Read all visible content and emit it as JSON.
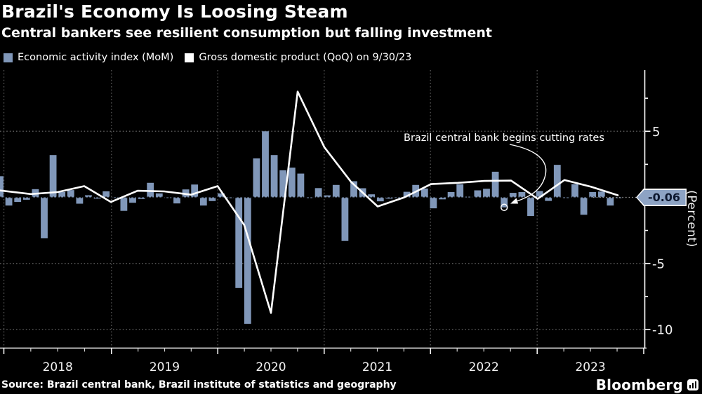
{
  "header": {
    "title": "Brazil's Economy Is Loosing Steam",
    "subtitle": "Central bankers see resilient consumption but falling investment"
  },
  "legend": [
    {
      "label": "Economic activity index (MoM)",
      "color": "#8097b9"
    },
    {
      "label": "Gross domestic product (QoQ) on 9/30/23",
      "color": "#ffffff"
    }
  ],
  "annotation": {
    "text": "Brazil central bank begins cutting rates"
  },
  "y_axis": {
    "unit_label": "(Percent)",
    "last_value_tag": "-0.06",
    "tick_labels": [
      {
        "label": "5",
        "value": 5
      },
      {
        "label": "-5",
        "value": -5
      },
      {
        "label": "-10",
        "value": -10
      }
    ]
  },
  "footer": {
    "source": "Source: Brazil central bank, Brazil institute of statistics and geography",
    "brand": "Bloomberg"
  },
  "chart_data": {
    "type": "combo",
    "title": "Brazil's Economy Is Loosing Steam",
    "bar_series": {
      "name": "Economic activity index (MoM)",
      "color": "#8097b9",
      "frequency": "monthly",
      "start_month": "2017-12",
      "values": [
        1.6,
        -0.62,
        -0.35,
        -0.18,
        0.62,
        -3.1,
        3.2,
        0.41,
        0.55,
        -0.48,
        0.16,
        -0.1,
        0.46,
        -0.05,
        -1.02,
        -0.41,
        -0.12,
        1.1,
        0.3,
        -0.05,
        -0.46,
        0.6,
        0.97,
        -0.62,
        -0.28,
        0.3,
        -0.06,
        -6.86,
        -9.57,
        2.95,
        5.0,
        3.2,
        2.05,
        2.25,
        1.8,
        -0.05,
        0.7,
        0.15,
        0.94,
        -3.3,
        1.22,
        0.69,
        0.23,
        -0.3,
        -0.1,
        -0.05,
        0.42,
        0.94,
        0.67,
        -0.83,
        -0.15,
        0.4,
        0.99,
        0.05,
        0.53,
        0.65,
        1.94,
        -0.76,
        0.34,
        0.4,
        -1.41,
        0.48,
        -0.27,
        2.46,
        -0.05,
        1.0,
        -1.32,
        0.4,
        0.44,
        -0.62,
        -0.06
      ]
    },
    "line_series": {
      "name": "Gross domestic product (QoQ) on 9/30/23",
      "color": "#ffffff",
      "frequency": "quarterly",
      "quarters": [
        "2018 Q1",
        "2018 Q2",
        "2018 Q3",
        "2018 Q4",
        "2019 Q1",
        "2019 Q2",
        "2019 Q3",
        "2019 Q4",
        "2020 Q1",
        "2020 Q2",
        "2020 Q3",
        "2020 Q4",
        "2021 Q1",
        "2021 Q2",
        "2021 Q3",
        "2021 Q4",
        "2022 Q1",
        "2022 Q2",
        "2022 Q3",
        "2022 Q4",
        "2023 Q1",
        "2023 Q2",
        "2023 Q3"
      ],
      "values": [
        0.25,
        0.4,
        0.85,
        -0.35,
        0.5,
        0.45,
        0.2,
        0.85,
        -2.1,
        -8.75,
        8.0,
        3.8,
        1.17,
        -0.69,
        0.0,
        1.0,
        1.1,
        1.24,
        1.27,
        -0.11,
        1.31,
        0.8,
        0.16
      ],
      "lead_in_value": 0.52
    },
    "y_axis": {
      "min": -11.4,
      "max": 9.6,
      "grid_values": [
        5,
        -5,
        -10
      ],
      "tick_step": 2.5,
      "unit": "(Percent)",
      "last_bar_value": -0.06
    },
    "x_axis": {
      "years": [
        "2018",
        "2019",
        "2020",
        "2021",
        "2022",
        "2023"
      ]
    },
    "annotation": {
      "text": "Brazil central bank begins cutting rates",
      "target_bar_index": 57
    },
    "legend_position": "top-left",
    "grid": "dotted"
  }
}
